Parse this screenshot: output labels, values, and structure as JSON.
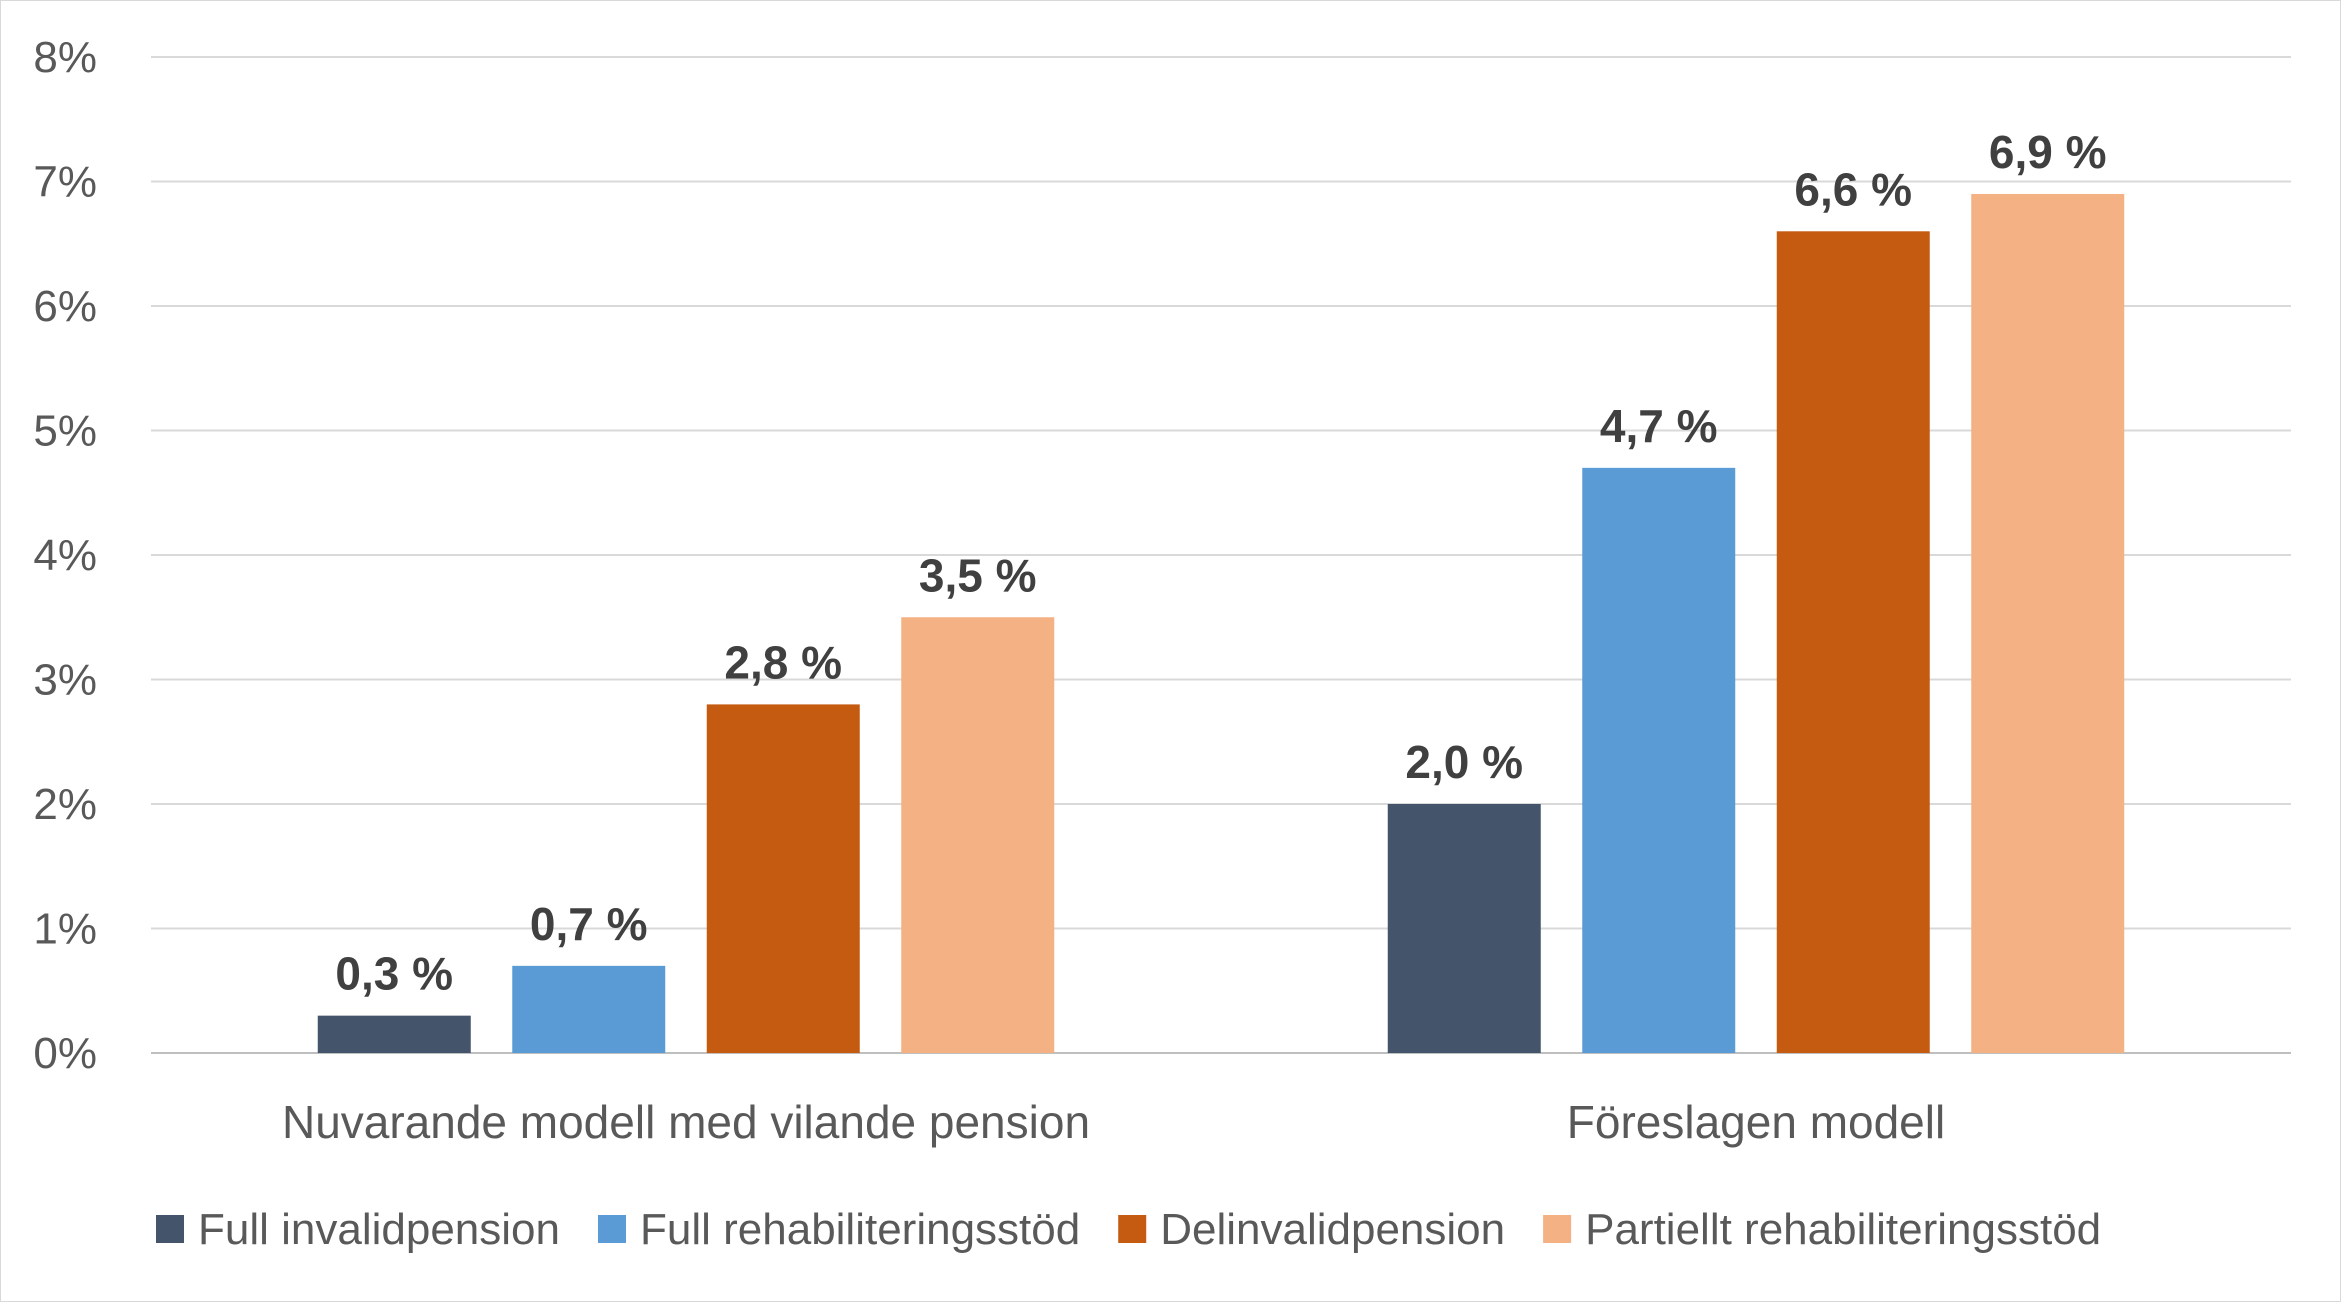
{
  "chart_data": {
    "type": "bar",
    "title": "",
    "xlabel": "",
    "ylabel": "",
    "ylim": [
      0,
      8
    ],
    "y_ticks": [
      "0%",
      "1%",
      "2%",
      "3%",
      "4%",
      "5%",
      "6%",
      "7%",
      "8%"
    ],
    "grid": true,
    "legend_position": "bottom",
    "categories": [
      "Nuvarande modell med vilande pension",
      "Föreslagen modell"
    ],
    "series": [
      {
        "name": "Full invalidpension",
        "color": "#44546a",
        "values": [
          0.3,
          2.0
        ],
        "labels": [
          "0,3 %",
          "2,0 %"
        ]
      },
      {
        "name": "Full rehabiliteringsstöd",
        "color": "#5b9bd5",
        "values": [
          0.7,
          4.7
        ],
        "labels": [
          "0,7 %",
          "4,7 %"
        ]
      },
      {
        "name": "Delinvalidpension",
        "color": "#c55a11",
        "values": [
          2.8,
          6.6
        ],
        "labels": [
          "2,8 %",
          "6,6 %"
        ]
      },
      {
        "name": "Partiellt rehabiliteringsstöd",
        "color": "#f4b183",
        "values": [
          3.5,
          6.9
        ],
        "labels": [
          "3,5 %",
          "6,9 %"
        ]
      }
    ]
  }
}
